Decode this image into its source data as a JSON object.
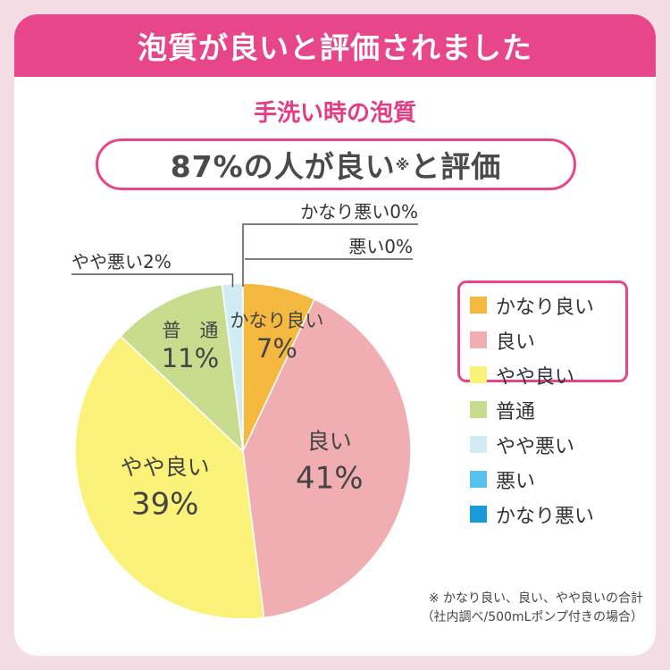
{
  "banner": {
    "title": "泡質が良いと評価されました"
  },
  "subtitle": "手洗い時の泡質",
  "summary": {
    "text_main": "87%の人が良い",
    "mark": "※",
    "text_tail": "と評価"
  },
  "chart_data": {
    "type": "pie",
    "title": "手洗い時の泡質",
    "slices": [
      {
        "label": "かなり良い",
        "value": 7,
        "color": "#f5b940"
      },
      {
        "label": "良い",
        "value": 41,
        "color": "#f1aeb2"
      },
      {
        "label": "やや良い",
        "value": 39,
        "color": "#fbf27a"
      },
      {
        "label": "普通",
        "value": 11,
        "color": "#c7dc8d"
      },
      {
        "label": "やや悪い",
        "value": 2,
        "color": "#d2ecf6"
      },
      {
        "label": "悪い",
        "value": 0,
        "color": "#56c2ee"
      },
      {
        "label": "かなり悪い",
        "value": 0,
        "color": "#1a9ad8"
      }
    ],
    "slice_labels": [
      {
        "name": "かなり良い",
        "pct": "7%"
      },
      {
        "name": "良い",
        "pct": "41%"
      },
      {
        "name": "やや良い",
        "pct": "39%"
      },
      {
        "name": "普　通",
        "pct": "11%"
      }
    ],
    "callouts": {
      "very_bad": "かなり悪い0%",
      "bad": "悪い0%",
      "slightly_bad": "やや悪い2%"
    },
    "legend_position": "right"
  },
  "footnote": {
    "line1": "※ かなり良い、良い、やや良いの合計",
    "line2": "（社内調べ/500mLポンプ付きの場合）"
  }
}
